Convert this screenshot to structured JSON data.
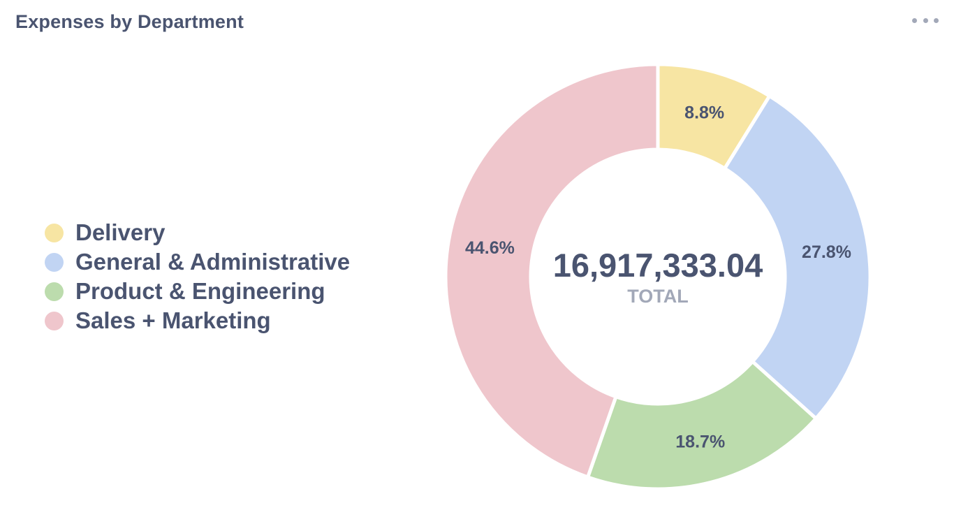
{
  "card": {
    "title": "Expenses by Department",
    "menu_icon": "more-horizontal-icon"
  },
  "colors": {
    "delivery": "#f7e5a3",
    "general_admin": "#c1d4f3",
    "product_engineering": "#bcdcad",
    "sales_marketing": "#efc6cc",
    "text": "#4a5470",
    "muted": "#a2a8b8"
  },
  "center": {
    "total": "16,917,333.04",
    "caption": "TOTAL"
  },
  "chart_data": {
    "type": "pie",
    "style": "donut",
    "title": "Expenses by Department",
    "legend_position": "left",
    "total": 16917333.04,
    "categories": [
      "Delivery",
      "General & Administrative",
      "Product & Engineering",
      "Sales + Marketing"
    ],
    "values": [
      8.8,
      27.8,
      18.7,
      44.6
    ],
    "labels": [
      "8.8%",
      "27.8%",
      "18.7%",
      "44.6%"
    ],
    "colors": [
      "#f7e5a3",
      "#c1d4f3",
      "#bcdcad",
      "#efc6cc"
    ]
  }
}
